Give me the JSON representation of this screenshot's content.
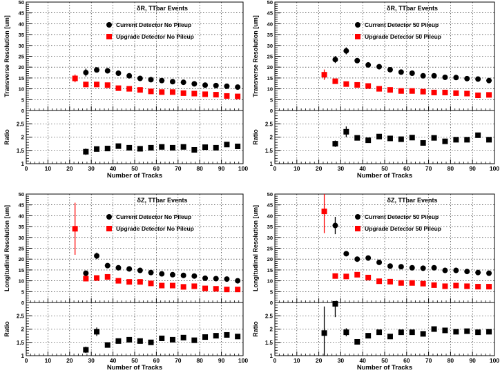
{
  "colors": {
    "current": "#000000",
    "upgrade": "#ff0000",
    "grid": "#000000"
  },
  "shared": {
    "ratio_ylabel": "Ratio",
    "xlabel": "Number of Tracks",
    "xlim": [
      0,
      100
    ],
    "x_ticks": [
      "0",
      "10",
      "20",
      "30",
      "40",
      "50",
      "60",
      "70",
      "80",
      "90",
      "100"
    ]
  },
  "chart_data": [
    {
      "type": "scatter",
      "title": "δR, TTbar Events",
      "ylabel": "Transverse Resolution [um]",
      "ylim": [
        0,
        50
      ],
      "y_ticks": [
        "0",
        "5",
        "10",
        "15",
        "20",
        "25",
        "30",
        "35",
        "40",
        "45",
        "50"
      ],
      "ratio_ylim": [
        1,
        3
      ],
      "ratio_ticks": [
        "1",
        "1.5",
        "2",
        "2.5"
      ],
      "legend_position": "top-center",
      "x": [
        22.5,
        27.5,
        32.5,
        37.5,
        42.5,
        47.5,
        52.5,
        57.5,
        62.5,
        67.5,
        72.5,
        77.5,
        82.5,
        87.5,
        92.5,
        97.5
      ],
      "series": [
        {
          "name": "Current Detector No Pileup",
          "marker": "circle",
          "values": [
            null,
            17.5,
            18.7,
            18.3,
            17.2,
            16,
            14.8,
            14.2,
            13.8,
            13.3,
            13,
            12.3,
            11.7,
            11.5,
            11.2,
            10.8
          ],
          "errors": [
            0,
            1.8,
            1.1,
            0.9,
            0.6,
            0.5,
            0.4,
            0.4,
            0.4,
            0.3,
            0.3,
            0.3,
            0.3,
            0.3,
            0.3,
            0.3
          ]
        },
        {
          "name": "Upgrade Detector No Pileup",
          "marker": "square",
          "values": [
            14.8,
            12,
            12,
            11.7,
            10.3,
            10,
            9.5,
            8.8,
            8.5,
            8.5,
            8,
            7.8,
            7.5,
            7.3,
            6.7,
            6.5
          ],
          "errors": [
            1.8,
            0.9,
            0.7,
            0.5,
            0.4,
            0.4,
            0.3,
            0.3,
            0.3,
            0.3,
            0.3,
            0.3,
            0.3,
            0.3,
            0.3,
            0.3
          ]
        },
        {
          "name": "Ratio",
          "marker": "square",
          "values": [
            null,
            1.45,
            1.55,
            1.57,
            1.66,
            1.6,
            1.56,
            1.6,
            1.63,
            1.6,
            1.63,
            1.52,
            1.62,
            1.6,
            1.72,
            1.65
          ],
          "errors": [
            0,
            0.12,
            0.09,
            0.06,
            0.06,
            0.05,
            0.04,
            0.04,
            0.04,
            0.04,
            0.04,
            0.04,
            0.04,
            0.04,
            0.04,
            0.04
          ]
        }
      ]
    },
    {
      "type": "scatter",
      "title": "δR, TTbar Events",
      "ylabel": "Transverse Resolution [um]",
      "ylim": [
        0,
        50
      ],
      "y_ticks": [
        "0",
        "5",
        "10",
        "15",
        "20",
        "25",
        "30",
        "35",
        "40",
        "45",
        "50"
      ],
      "ratio_ylim": [
        1,
        3
      ],
      "ratio_ticks": [
        "1",
        "1.5",
        "2",
        "2.5"
      ],
      "legend_position": "top-center",
      "x": [
        22.5,
        27.5,
        32.5,
        37.5,
        42.5,
        47.5,
        52.5,
        57.5,
        62.5,
        67.5,
        72.5,
        77.5,
        82.5,
        87.5,
        92.5,
        97.5
      ],
      "series": [
        {
          "name": "Current Detector 50 Pileup",
          "marker": "circle",
          "values": [
            null,
            23.5,
            27.5,
            23,
            21,
            20.2,
            18.8,
            17.7,
            17.2,
            16,
            16,
            15.3,
            15.2,
            14.7,
            14.5,
            13.8
          ],
          "errors": [
            0,
            1.6,
            1.6,
            1,
            0.7,
            0.5,
            0.4,
            0.4,
            0.4,
            0.3,
            0.3,
            0.3,
            0.3,
            0.3,
            0.3,
            0.3
          ]
        },
        {
          "name": "Upgrade Detector 50 Pileup",
          "marker": "square",
          "values": [
            16.5,
            13.5,
            12.2,
            11.8,
            11.3,
            10,
            9.5,
            9,
            9,
            8.7,
            8.3,
            8.3,
            8,
            7.8,
            7,
            7.2
          ],
          "errors": [
            2.4,
            1,
            0.7,
            0.6,
            0.5,
            0.4,
            0.3,
            0.3,
            0.3,
            0.3,
            0.3,
            0.3,
            0.3,
            0.3,
            0.3,
            0.3
          ]
        },
        {
          "name": "Ratio",
          "marker": "square",
          "values": [
            null,
            1.75,
            2.2,
            1.97,
            1.88,
            2.02,
            1.95,
            1.92,
            1.98,
            1.78,
            1.97,
            1.84,
            1.9,
            1.9,
            2.07,
            1.9
          ],
          "errors": [
            0,
            0.12,
            0.2,
            0.08,
            0.08,
            0.06,
            0.05,
            0.05,
            0.05,
            0.05,
            0.05,
            0.05,
            0.05,
            0.05,
            0.05,
            0.05
          ]
        }
      ]
    },
    {
      "type": "scatter",
      "title": "δZ, TTbar Events",
      "ylabel": "Longitudinal Resolution [um]",
      "ylim": [
        0,
        50
      ],
      "y_ticks": [
        "0",
        "5",
        "10",
        "15",
        "20",
        "25",
        "30",
        "35",
        "40",
        "45",
        "50"
      ],
      "ratio_ylim": [
        1,
        3
      ],
      "ratio_ticks": [
        "1",
        "1.5",
        "2",
        "2.5"
      ],
      "legend_position": "top-center",
      "x": [
        22.5,
        27.5,
        32.5,
        37.5,
        42.5,
        47.5,
        52.5,
        57.5,
        62.5,
        67.5,
        72.5,
        77.5,
        82.5,
        87.5,
        92.5,
        97.5
      ],
      "series": [
        {
          "name": "Current Detector No Pileup",
          "marker": "circle",
          "values": [
            null,
            13.5,
            21.5,
            17,
            16,
            15.5,
            14.8,
            13.8,
            13.2,
            12.8,
            12.5,
            12.2,
            11.2,
            11,
            10.8,
            10
          ],
          "errors": [
            0,
            1.2,
            1.5,
            0.8,
            0.6,
            0.5,
            0.4,
            0.4,
            0.4,
            0.3,
            0.3,
            0.3,
            0.3,
            0.3,
            0.3,
            0.3
          ]
        },
        {
          "name": "Upgrade Detector No Pileup",
          "marker": "square",
          "values": [
            34,
            11,
            11.3,
            11.8,
            10,
            9.5,
            9.5,
            8.8,
            7.8,
            7.8,
            7.2,
            7.5,
            6.5,
            6.3,
            6,
            6
          ],
          "errors": [
            12,
            1,
            0.8,
            0.6,
            0.5,
            0.4,
            0.3,
            0.3,
            0.3,
            0.3,
            0.3,
            0.3,
            0.3,
            0.3,
            0.3,
            0.3
          ]
        },
        {
          "name": "Ratio",
          "marker": "square",
          "values": [
            null,
            1.22,
            1.9,
            1.4,
            1.55,
            1.6,
            1.55,
            1.5,
            1.65,
            1.6,
            1.68,
            1.58,
            1.7,
            1.75,
            1.78,
            1.72
          ],
          "errors": [
            0,
            0.12,
            0.16,
            0.07,
            0.06,
            0.05,
            0.05,
            0.05,
            0.05,
            0.05,
            0.05,
            0.05,
            0.05,
            0.05,
            0.05,
            0.05
          ]
        }
      ]
    },
    {
      "type": "scatter",
      "title": "δZ, TTbar Events",
      "ylabel": "Longitudinal Resolution [um]",
      "ylim": [
        0,
        50
      ],
      "y_ticks": [
        "0",
        "5",
        "10",
        "15",
        "20",
        "25",
        "30",
        "35",
        "40",
        "45",
        "50"
      ],
      "ratio_ylim": [
        1,
        3
      ],
      "ratio_ticks": [
        "1",
        "1.5",
        "2",
        "2.5"
      ],
      "legend_position": "top-center",
      "x": [
        22.5,
        27.5,
        32.5,
        37.5,
        42.5,
        47.5,
        52.5,
        57.5,
        62.5,
        67.5,
        72.5,
        77.5,
        82.5,
        87.5,
        92.5,
        97.5
      ],
      "series": [
        {
          "name": "Current Detector 50 Pileup",
          "marker": "circle",
          "values": [
            null,
            35.5,
            22.5,
            20,
            20.5,
            18.5,
            16.8,
            16.5,
            16,
            15.8,
            16,
            14.8,
            14.8,
            14.3,
            13.8,
            13.5
          ],
          "errors": [
            0,
            4,
            1.2,
            0.9,
            0.7,
            0.5,
            0.4,
            0.4,
            0.4,
            0.3,
            0.3,
            0.3,
            0.3,
            0.3,
            0.3,
            0.3
          ]
        },
        {
          "name": "Upgrade Detector 50 Pileup",
          "marker": "square",
          "values": [
            42,
            12.2,
            12,
            12.8,
            11.5,
            9.8,
            9.6,
            9,
            9,
            8.7,
            8,
            7.5,
            7.8,
            7.5,
            7.3,
            7.3
          ],
          "errors": [
            10,
            1,
            0.8,
            0.6,
            0.5,
            0.4,
            0.3,
            0.3,
            0.3,
            0.3,
            0.3,
            0.3,
            0.3,
            0.3,
            0.3,
            0.3
          ]
        },
        {
          "name": "Ratio",
          "marker": "square",
          "values": [
            1.85,
            2.95,
            1.88,
            1.52,
            1.75,
            1.88,
            1.72,
            1.88,
            1.88,
            1.82,
            2,
            1.95,
            1.9,
            1.92,
            1.88,
            1.9
          ],
          "errors": [
            1,
            0.5,
            0.15,
            0.08,
            0.06,
            0.06,
            0.05,
            0.05,
            0.05,
            0.05,
            0.05,
            0.05,
            0.05,
            0.05,
            0.05,
            0.05
          ]
        }
      ]
    }
  ]
}
